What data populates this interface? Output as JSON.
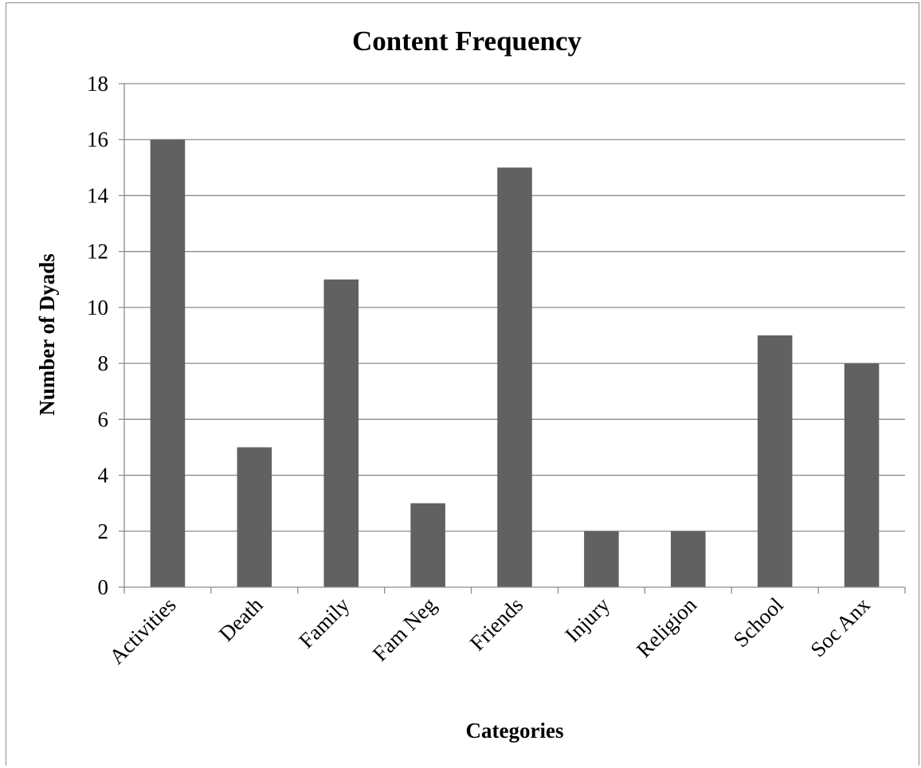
{
  "chart_data": {
    "type": "bar",
    "title": "Content Frequency",
    "xlabel": "Categories",
    "ylabel": "Number of Dyads",
    "categories": [
      "Activities",
      "Death",
      "Family",
      "Fam Neg",
      "Friends",
      "Injury",
      "Religion",
      "School",
      "Soc Anx"
    ],
    "values": [
      16,
      5,
      11,
      3,
      15,
      2,
      2,
      9,
      8
    ],
    "ylim": [
      0,
      18
    ],
    "yticks": [
      0,
      2,
      4,
      6,
      8,
      10,
      12,
      14,
      16,
      18
    ],
    "grid": true,
    "legend": "none",
    "bar_color": "#616161"
  }
}
